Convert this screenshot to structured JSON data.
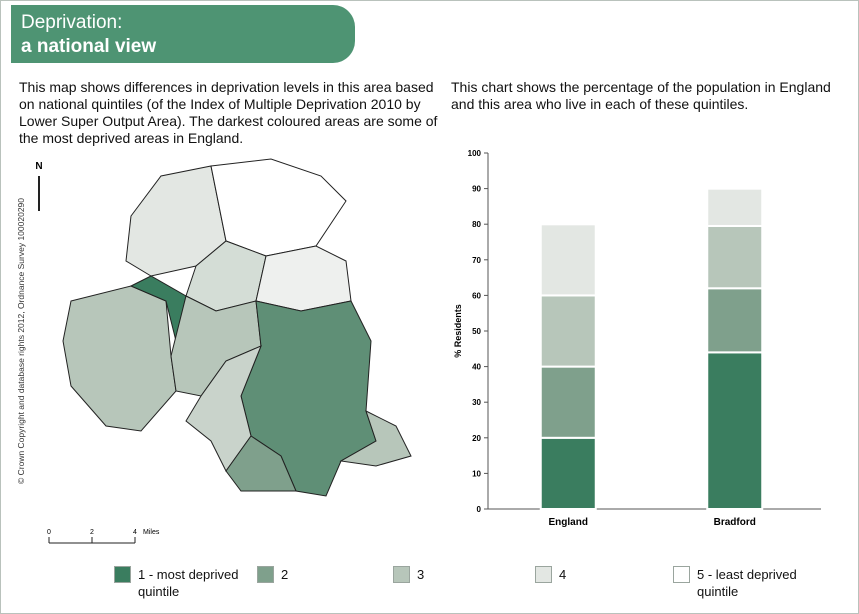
{
  "header": {
    "title_line1": "Deprivation:",
    "title_line2": "a national view"
  },
  "map": {
    "description": "This map shows differences in deprivation levels in this area based on national quintiles (of the Index of Multiple Deprivation 2010 by Lower Super Output Area).  The darkest coloured areas are some of the most deprived areas in England.",
    "north": "N",
    "copyright": "© Crown Copyright and database rights 2012, Ordnance Survey 100020290",
    "scale": [
      "0",
      "2",
      "4",
      "Miles"
    ]
  },
  "chart_description": "This chart shows the percentage of the population in England and this area who live in each of these quintiles.",
  "chart_data": {
    "type": "stacked_bar",
    "y_label": "% Residents",
    "categories": [
      "England",
      "Bradford"
    ],
    "series": [
      {
        "name": "1 - most deprived quintile",
        "color": "#3a7d5f",
        "values": [
          20,
          44
        ]
      },
      {
        "name": "2",
        "color": "#7fa08c",
        "values": [
          20,
          18
        ]
      },
      {
        "name": "3",
        "color": "#b7c6ba",
        "values": [
          20,
          17.5
        ]
      },
      {
        "name": "4",
        "color": "#e3e7e3",
        "values": [
          20,
          10.5
        ]
      },
      {
        "name": "5 - least deprived quintile",
        "color": "#ffffff",
        "values": [
          20,
          10
        ]
      }
    ],
    "ylim": [
      0,
      100
    ],
    "yticks": [
      0,
      10,
      20,
      30,
      40,
      50,
      60,
      70,
      80,
      90,
      100
    ]
  }
}
